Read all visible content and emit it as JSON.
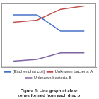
{
  "chart_data": {
    "type": "line",
    "title": "Figure 4: Line graph of clear zones formed from each disc p",
    "categories": [
      null,
      null,
      null,
      null
    ],
    "series": [
      {
        "name": "(Escherichia coli)",
        "color": "#4472c4",
        "values": [
          24.4,
          24.4,
          16.9,
          16.9
        ]
      },
      {
        "name": "Unknown bacteria A",
        "color": "#c0504d",
        "values": [
          21,
          22,
          27,
          28.5
        ]
      },
      {
        "name": "Unknown bacteria B",
        "color": "#8064a2",
        "values": [
          3,
          3.8,
          6.8,
          6.8
        ]
      }
    ],
    "ylim": [
      0,
      30
    ],
    "grid": false,
    "tick_labels": false,
    "legend": "bottom"
  }
}
